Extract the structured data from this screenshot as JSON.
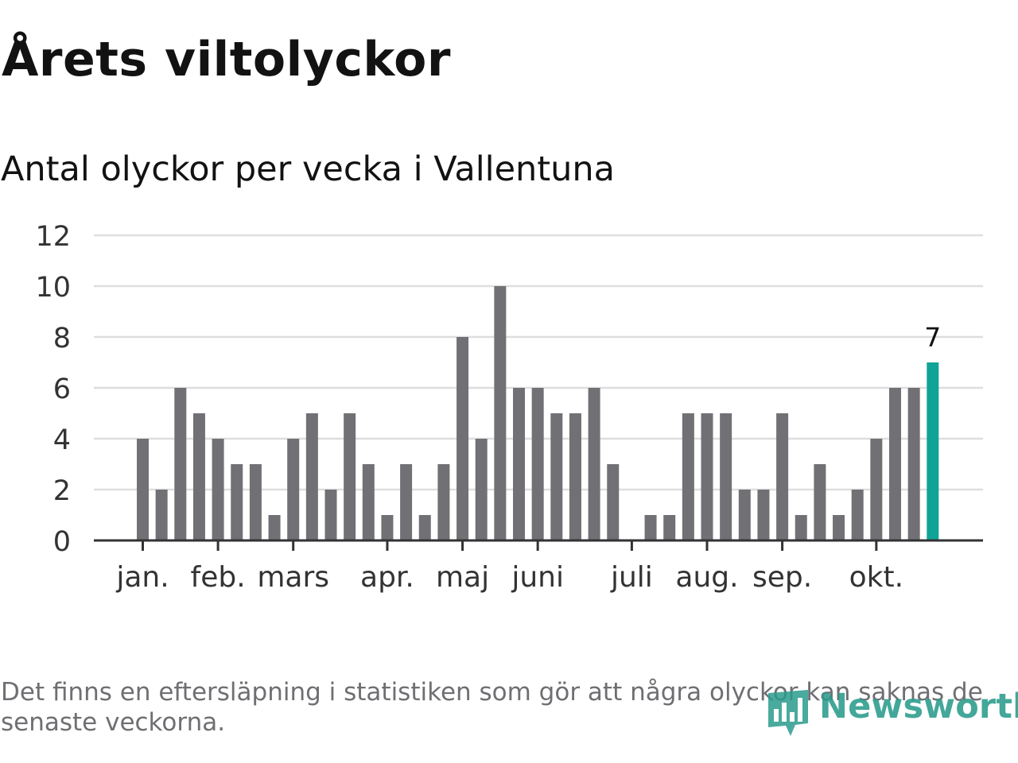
{
  "header": {
    "title": "Årets viltolyckor",
    "subtitle": "Antal olyckor per vecka i Vallentuna"
  },
  "footnote": "Det finns en eftersläpning i statistiken som gör att några olyckor kan saknas de senaste veckorna.",
  "logo": {
    "text": "Newsworthy",
    "color": "#2a9b8c"
  },
  "chart_data": {
    "type": "bar",
    "title": "Årets viltolyckor",
    "subtitle": "Antal olyckor per vecka i Vallentuna",
    "xlabel": "",
    "ylabel": "",
    "weeks": [
      1,
      2,
      3,
      4,
      5,
      6,
      7,
      8,
      9,
      10,
      11,
      12,
      13,
      14,
      15,
      16,
      17,
      18,
      19,
      20,
      21,
      22,
      23,
      24,
      25,
      26,
      27,
      28,
      29,
      30,
      31,
      32,
      33,
      34,
      35,
      36,
      37,
      38,
      39,
      40,
      41,
      42,
      43
    ],
    "values": [
      4,
      2,
      6,
      5,
      4,
      3,
      3,
      1,
      4,
      5,
      2,
      5,
      3,
      1,
      3,
      1,
      3,
      8,
      4,
      10,
      6,
      6,
      5,
      5,
      6,
      3,
      0,
      1,
      1,
      5,
      5,
      5,
      2,
      2,
      5,
      1,
      3,
      1,
      2,
      4,
      6,
      6,
      7
    ],
    "month_ticks": [
      {
        "label": "jan.",
        "week": 1
      },
      {
        "label": "feb.",
        "week": 5
      },
      {
        "label": "mars",
        "week": 9
      },
      {
        "label": "apr.",
        "week": 14
      },
      {
        "label": "maj",
        "week": 18
      },
      {
        "label": "juni",
        "week": 22
      },
      {
        "label": "juli",
        "week": 27
      },
      {
        "label": "aug.",
        "week": 31
      },
      {
        "label": "sep.",
        "week": 35
      },
      {
        "label": "okt.",
        "week": 40
      }
    ],
    "ylim": [
      0,
      12
    ],
    "yticks": [
      0,
      2,
      4,
      6,
      8,
      10,
      12
    ],
    "grid": true,
    "highlight": {
      "week": 43,
      "label": "7"
    },
    "colors": {
      "bar": "#717075",
      "highlight": "#11a397",
      "grid": "#dedede",
      "axis": "#333333"
    }
  }
}
